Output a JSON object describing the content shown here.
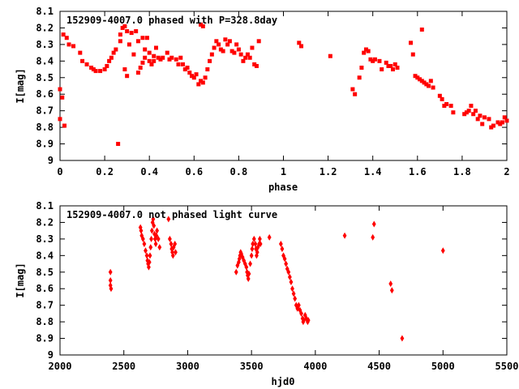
{
  "chart_data": [
    {
      "type": "scatter",
      "title": "152909-4007.0 phased with P=328.8day",
      "xlabel": "phase",
      "ylabel": "I[mag]",
      "xlim": [
        0,
        2
      ],
      "ylim": [
        9,
        8.1
      ],
      "y_inverted": true,
      "grid": false,
      "legend": "none",
      "marker_color": "#ff0000",
      "x_ticks": [
        "0",
        "0.2",
        "0.4",
        "0.6",
        "0.8",
        "1",
        "1.2",
        "1.4",
        "1.6",
        "1.8",
        "2"
      ],
      "y_ticks": [
        "8.1",
        "8.2",
        "8.3",
        "8.4",
        "8.5",
        "8.6",
        "8.7",
        "8.8",
        "8.9",
        "9"
      ],
      "x_tick_values": [
        0,
        0.2,
        0.4,
        0.6,
        0.8,
        1,
        1.2,
        1.4,
        1.6,
        1.8,
        2
      ],
      "y_tick_values": [
        8.1,
        8.2,
        8.3,
        8.4,
        8.5,
        8.6,
        8.7,
        8.8,
        8.9,
        9
      ],
      "points": [
        [
          0.0,
          8.75
        ],
        [
          0.0,
          8.57
        ],
        [
          0.01,
          8.62
        ],
        [
          0.015,
          8.24
        ],
        [
          0.02,
          8.79
        ],
        [
          0.03,
          8.26
        ],
        [
          0.04,
          8.3
        ],
        [
          0.06,
          8.31
        ],
        [
          0.09,
          8.35
        ],
        [
          0.1,
          8.4
        ],
        [
          0.12,
          8.42
        ],
        [
          0.14,
          8.44
        ],
        [
          0.15,
          8.45
        ],
        [
          0.16,
          8.46
        ],
        [
          0.18,
          8.46
        ],
        [
          0.2,
          8.45
        ],
        [
          0.21,
          8.43
        ],
        [
          0.22,
          8.4
        ],
        [
          0.23,
          8.38
        ],
        [
          0.24,
          8.35
        ],
        [
          0.25,
          8.33
        ],
        [
          0.26,
          8.9
        ],
        [
          0.27,
          8.28
        ],
        [
          0.27,
          8.24
        ],
        [
          0.28,
          8.2
        ],
        [
          0.29,
          8.19
        ],
        [
          0.3,
          8.22
        ],
        [
          0.29,
          8.45
        ],
        [
          0.3,
          8.49
        ],
        [
          0.31,
          8.3
        ],
        [
          0.32,
          8.23
        ],
        [
          0.33,
          8.36
        ],
        [
          0.34,
          8.22
        ],
        [
          0.35,
          8.28
        ],
        [
          0.35,
          8.47
        ],
        [
          0.36,
          8.44
        ],
        [
          0.37,
          8.41
        ],
        [
          0.37,
          8.26
        ],
        [
          0.38,
          8.33
        ],
        [
          0.38,
          8.38
        ],
        [
          0.39,
          8.26
        ],
        [
          0.4,
          8.35
        ],
        [
          0.4,
          8.4
        ],
        [
          0.41,
          8.42
        ],
        [
          0.42,
          8.37
        ],
        [
          0.42,
          8.4
        ],
        [
          0.43,
          8.32
        ],
        [
          0.44,
          8.38
        ],
        [
          0.45,
          8.39
        ],
        [
          0.46,
          8.38
        ],
        [
          0.48,
          8.35
        ],
        [
          0.49,
          8.39
        ],
        [
          0.5,
          8.38
        ],
        [
          0.52,
          8.39
        ],
        [
          0.53,
          8.42
        ],
        [
          0.54,
          8.38
        ],
        [
          0.55,
          8.42
        ],
        [
          0.56,
          8.45
        ],
        [
          0.57,
          8.44
        ],
        [
          0.58,
          8.47
        ],
        [
          0.59,
          8.49
        ],
        [
          0.6,
          8.5
        ],
        [
          0.61,
          8.48
        ],
        [
          0.62,
          8.54
        ],
        [
          0.63,
          8.52
        ],
        [
          0.63,
          8.18
        ],
        [
          0.64,
          8.19
        ],
        [
          0.64,
          8.53
        ],
        [
          0.65,
          8.5
        ],
        [
          0.66,
          8.45
        ],
        [
          0.67,
          8.4
        ],
        [
          0.68,
          8.36
        ],
        [
          0.69,
          8.32
        ],
        [
          0.7,
          8.28
        ],
        [
          0.71,
          8.3
        ],
        [
          0.72,
          8.33
        ],
        [
          0.73,
          8.34
        ],
        [
          0.74,
          8.27
        ],
        [
          0.75,
          8.3
        ],
        [
          0.76,
          8.28
        ],
        [
          0.77,
          8.34
        ],
        [
          0.78,
          8.35
        ],
        [
          0.79,
          8.3
        ],
        [
          0.8,
          8.33
        ],
        [
          0.81,
          8.36
        ],
        [
          0.82,
          8.4
        ],
        [
          0.83,
          8.38
        ],
        [
          0.84,
          8.36
        ],
        [
          0.85,
          8.38
        ],
        [
          0.86,
          8.32
        ],
        [
          0.87,
          8.42
        ],
        [
          0.88,
          8.43
        ],
        [
          0.89,
          8.28
        ],
        [
          1.07,
          8.29
        ],
        [
          1.08,
          8.31
        ],
        [
          1.21,
          8.37
        ],
        [
          1.31,
          8.57
        ],
        [
          1.32,
          8.6
        ],
        [
          1.34,
          8.5
        ],
        [
          1.35,
          8.44
        ],
        [
          1.36,
          8.35
        ],
        [
          1.37,
          8.33
        ],
        [
          1.38,
          8.34
        ],
        [
          1.39,
          8.39
        ],
        [
          1.4,
          8.4
        ],
        [
          1.41,
          8.39
        ],
        [
          1.43,
          8.4
        ],
        [
          1.44,
          8.45
        ],
        [
          1.46,
          8.41
        ],
        [
          1.47,
          8.43
        ],
        [
          1.48,
          8.43
        ],
        [
          1.49,
          8.45
        ],
        [
          1.5,
          8.42
        ],
        [
          1.51,
          8.44
        ],
        [
          1.57,
          8.29
        ],
        [
          1.58,
          8.36
        ],
        [
          1.59,
          8.49
        ],
        [
          1.6,
          8.5
        ],
        [
          1.61,
          8.51
        ],
        [
          1.62,
          8.52
        ],
        [
          1.62,
          8.21
        ],
        [
          1.63,
          8.53
        ],
        [
          1.64,
          8.54
        ],
        [
          1.65,
          8.55
        ],
        [
          1.66,
          8.52
        ],
        [
          1.67,
          8.56
        ],
        [
          1.7,
          8.61
        ],
        [
          1.71,
          8.63
        ],
        [
          1.72,
          8.67
        ],
        [
          1.73,
          8.66
        ],
        [
          1.75,
          8.67
        ],
        [
          1.76,
          8.71
        ],
        [
          1.81,
          8.72
        ],
        [
          1.82,
          8.71
        ],
        [
          1.83,
          8.7
        ],
        [
          1.84,
          8.67
        ],
        [
          1.85,
          8.72
        ],
        [
          1.86,
          8.7
        ],
        [
          1.87,
          8.75
        ],
        [
          1.88,
          8.73
        ],
        [
          1.89,
          8.78
        ],
        [
          1.9,
          8.74
        ],
        [
          1.92,
          8.75
        ],
        [
          1.93,
          8.8
        ],
        [
          1.94,
          8.79
        ],
        [
          1.96,
          8.77
        ],
        [
          1.97,
          8.78
        ],
        [
          1.98,
          8.77
        ],
        [
          1.99,
          8.74
        ],
        [
          2.0,
          8.76
        ]
      ]
    },
    {
      "type": "scatter",
      "title": "152909-4007.0 not phased light curve",
      "xlabel": "hjd0",
      "ylabel": "I[mag]",
      "xlim": [
        2000,
        5500
      ],
      "ylim": [
        9,
        8.1
      ],
      "y_inverted": true,
      "grid": false,
      "legend": "none",
      "marker_color": "#ff0000",
      "x_ticks": [
        "2000",
        "2500",
        "3000",
        "3500",
        "4000",
        "4500",
        "5000",
        "5500"
      ],
      "y_ticks": [
        "8.1",
        "8.2",
        "8.3",
        "8.4",
        "8.5",
        "8.6",
        "8.7",
        "8.8",
        "8.9",
        "9"
      ],
      "x_tick_values": [
        2000,
        2500,
        3000,
        3500,
        4000,
        4500,
        5000,
        5500
      ],
      "y_tick_values": [
        8.1,
        8.2,
        8.3,
        8.4,
        8.5,
        8.6,
        8.7,
        8.8,
        8.9,
        9
      ],
      "points": [
        [
          2395,
          8.5
        ],
        [
          2395,
          8.55
        ],
        [
          2395,
          8.58
        ],
        [
          2400,
          8.6
        ],
        [
          2630,
          8.23
        ],
        [
          2635,
          8.25
        ],
        [
          2640,
          8.28
        ],
        [
          2650,
          8.3
        ],
        [
          2660,
          8.33
        ],
        [
          2670,
          8.37
        ],
        [
          2680,
          8.4
        ],
        [
          2685,
          8.43
        ],
        [
          2690,
          8.45
        ],
        [
          2695,
          8.47
        ],
        [
          2700,
          8.44
        ],
        [
          2705,
          8.4
        ],
        [
          2710,
          8.35
        ],
        [
          2715,
          8.3
        ],
        [
          2720,
          8.25
        ],
        [
          2725,
          8.2
        ],
        [
          2730,
          8.18
        ],
        [
          2735,
          8.22
        ],
        [
          2740,
          8.27
        ],
        [
          2745,
          8.3
        ],
        [
          2750,
          8.33
        ],
        [
          2755,
          8.28
        ],
        [
          2760,
          8.25
        ],
        [
          2770,
          8.3
        ],
        [
          2780,
          8.35
        ],
        [
          2850,
          8.18
        ],
        [
          2860,
          8.3
        ],
        [
          2870,
          8.33
        ],
        [
          2875,
          8.36
        ],
        [
          2880,
          8.38
        ],
        [
          2885,
          8.4
        ],
        [
          2890,
          8.35
        ],
        [
          2900,
          8.33
        ],
        [
          2905,
          8.38
        ],
        [
          3380,
          8.5
        ],
        [
          3390,
          8.46
        ],
        [
          3400,
          8.44
        ],
        [
          3405,
          8.42
        ],
        [
          3410,
          8.4
        ],
        [
          3415,
          8.38
        ],
        [
          3420,
          8.39
        ],
        [
          3430,
          8.41
        ],
        [
          3440,
          8.43
        ],
        [
          3450,
          8.45
        ],
        [
          3460,
          8.47
        ],
        [
          3465,
          8.5
        ],
        [
          3470,
          8.52
        ],
        [
          3475,
          8.54
        ],
        [
          3480,
          8.51
        ],
        [
          3490,
          8.45
        ],
        [
          3500,
          8.4
        ],
        [
          3505,
          8.36
        ],
        [
          3510,
          8.33
        ],
        [
          3520,
          8.3
        ],
        [
          3530,
          8.33
        ],
        [
          3535,
          8.36
        ],
        [
          3540,
          8.4
        ],
        [
          3545,
          8.38
        ],
        [
          3550,
          8.35
        ],
        [
          3560,
          8.33
        ],
        [
          3565,
          8.3
        ],
        [
          3570,
          8.33
        ],
        [
          3640,
          8.29
        ],
        [
          3730,
          8.33
        ],
        [
          3740,
          8.36
        ],
        [
          3750,
          8.4
        ],
        [
          3760,
          8.42
        ],
        [
          3770,
          8.45
        ],
        [
          3780,
          8.48
        ],
        [
          3790,
          8.5
        ],
        [
          3800,
          8.53
        ],
        [
          3810,
          8.56
        ],
        [
          3820,
          8.6
        ],
        [
          3830,
          8.63
        ],
        [
          3840,
          8.66
        ],
        [
          3850,
          8.7
        ],
        [
          3860,
          8.72
        ],
        [
          3870,
          8.7
        ],
        [
          3880,
          8.73
        ],
        [
          3890,
          8.75
        ],
        [
          3900,
          8.78
        ],
        [
          3905,
          8.8
        ],
        [
          3910,
          8.79
        ],
        [
          3920,
          8.76
        ],
        [
          3930,
          8.78
        ],
        [
          3940,
          8.8
        ],
        [
          3945,
          8.79
        ],
        [
          4230,
          8.28
        ],
        [
          4450,
          8.29
        ],
        [
          4460,
          8.21
        ],
        [
          4590,
          8.57
        ],
        [
          4600,
          8.61
        ],
        [
          4680,
          8.9
        ],
        [
          5000,
          8.37
        ]
      ]
    }
  ]
}
